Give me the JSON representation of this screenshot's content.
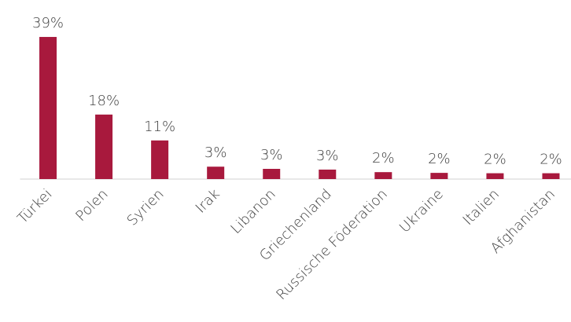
{
  "chart_data": {
    "type": "bar",
    "categories": [
      "Türkei",
      "Polen",
      "Syrien",
      "Irak",
      "Libanon",
      "Griechenland",
      "Russische Föderation",
      "Ukraine",
      "Italien",
      "Afghanistan"
    ],
    "values": [
      39,
      17.7,
      10.6,
      3.4,
      2.8,
      2.6,
      1.9,
      1.7,
      1.6,
      1.6
    ],
    "value_labels": [
      "39%",
      "18%",
      "11%",
      "3%",
      "3%",
      "3%",
      "2%",
      "2%",
      "2%",
      "2%"
    ],
    "color": "#a8193d",
    "ylim": [
      0,
      40
    ]
  }
}
